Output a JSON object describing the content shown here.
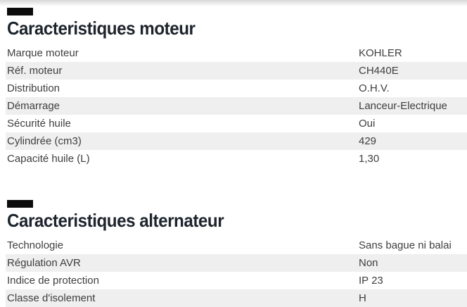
{
  "colors": {
    "heading_text": "#1d242c",
    "body_text": "#3e3e3e",
    "row_stripe": "#efefef",
    "marker_bar": "#0c0c0c",
    "top_fade_start": "#d8d8d8"
  },
  "sections": [
    {
      "title": "Caracteristiques moteur",
      "rows": [
        {
          "label": "Marque moteur",
          "value": "KOHLER"
        },
        {
          "label": "Réf. moteur",
          "value": "CH440E"
        },
        {
          "label": "Distribution",
          "value": "O.H.V."
        },
        {
          "label": "Démarrage",
          "value": "Lanceur-Electrique"
        },
        {
          "label": "Sécurité huile",
          "value": "Oui"
        },
        {
          "label": "Cylindrée (cm3)",
          "value": "429"
        },
        {
          "label": "Capacité huile (L)",
          "value": "1,30"
        }
      ]
    },
    {
      "title": "Caracteristiques alternateur",
      "rows": [
        {
          "label": "Technologie",
          "value": "Sans bague ni balai"
        },
        {
          "label": "Régulation AVR",
          "value": "Non"
        },
        {
          "label": "Indice de protection",
          "value": "IP 23"
        },
        {
          "label": "Classe d'isolement",
          "value": "H"
        }
      ]
    }
  ]
}
